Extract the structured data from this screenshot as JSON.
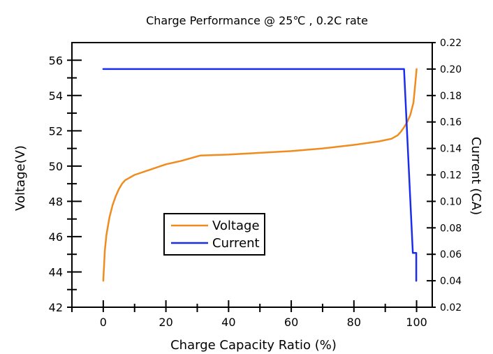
{
  "chart_data": {
    "type": "line",
    "title": "Charge Performance @ 25℃ , 0.2C rate",
    "xlabel": "Charge Capacity Ratio (%)",
    "ylabel": "Voltage(V)",
    "y2label": "Current (CA)",
    "xlim": [
      -10,
      105
    ],
    "ylim": [
      42,
      57
    ],
    "y2lim": [
      0.02,
      0.22
    ],
    "x_ticks": [
      0,
      20,
      40,
      60,
      80,
      100
    ],
    "y_ticks": [
      42,
      44,
      46,
      48,
      50,
      52,
      54,
      56
    ],
    "y2_ticks": [
      0.02,
      0.04,
      0.06,
      0.08,
      0.1,
      0.12,
      0.14,
      0.16,
      0.18,
      0.2,
      0.22
    ],
    "x_tick_labels": [
      "0",
      "20",
      "40",
      "60",
      "80",
      "100"
    ],
    "y_tick_labels": [
      "42",
      "44",
      "46",
      "48",
      "50",
      "52",
      "54",
      "56"
    ],
    "y2_tick_labels": [
      "0.02",
      "0.04",
      "0.06",
      "0.08",
      "0.10",
      "0.12",
      "0.14",
      "0.16",
      "0.18",
      "0.20",
      "0.22"
    ],
    "grid": false,
    "legend_position": "center-left",
    "series": [
      {
        "name": "Voltage",
        "axis": "left",
        "color": "#F08C1E",
        "x": [
          0,
          0.5,
          1,
          2,
          3,
          4,
          5,
          6,
          7,
          10,
          15,
          20,
          25,
          31,
          40,
          50,
          60,
          70,
          80,
          88,
          92,
          94,
          95,
          96,
          97,
          98,
          99,
          99.5,
          100
        ],
        "y": [
          43.5,
          45.2,
          46.1,
          47.1,
          47.8,
          48.3,
          48.7,
          49.0,
          49.2,
          49.5,
          49.8,
          50.1,
          50.3,
          50.6,
          50.65,
          50.75,
          50.85,
          51.0,
          51.2,
          51.4,
          51.55,
          51.75,
          51.95,
          52.2,
          52.5,
          52.9,
          53.6,
          54.5,
          55.5
        ]
      },
      {
        "name": "Current",
        "axis": "right",
        "color": "#1A2DEB",
        "x": [
          0,
          96,
          98.8,
          98.8,
          99.9,
          99.9
        ],
        "y": [
          0.2,
          0.2,
          0.061,
          0.061,
          0.061,
          0.04
        ]
      }
    ]
  }
}
